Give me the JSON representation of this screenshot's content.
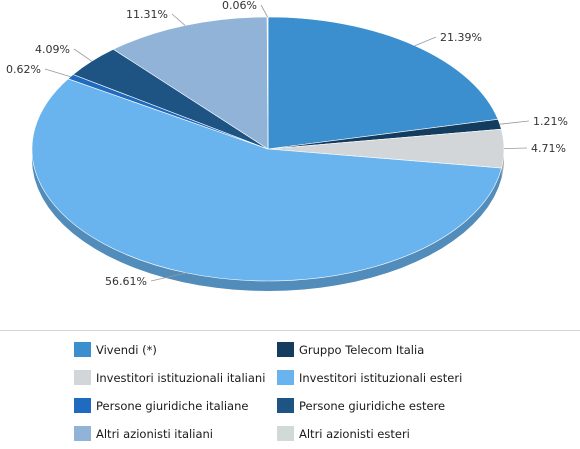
{
  "chart_data": {
    "type": "pie",
    "series": [
      {
        "name": "Vivendi (*)",
        "value": 21.39,
        "label": "21.39%",
        "color": "#3b8fce"
      },
      {
        "name": "Gruppo Telecom Italia",
        "value": 1.21,
        "label": "1.21%",
        "color": "#133c5f"
      },
      {
        "name": "Investitori istituzionali italiani",
        "value": 4.71,
        "label": "4.71%",
        "color": "#d3d6d8"
      },
      {
        "name": "Investitori istituzionali esteri",
        "value": 56.61,
        "label": "56.61%",
        "color": "#69b4ee"
      },
      {
        "name": "Persone giuridiche italiane",
        "value": 0.62,
        "label": "0.62%",
        "color": "#1f6bbf"
      },
      {
        "name": "Persone giuridiche estere",
        "value": 4.09,
        "label": "4.09%",
        "color": "#1e5484"
      },
      {
        "name": "Altri azionisti italiani",
        "value": 11.31,
        "label": "11.31%",
        "color": "#92b3d8"
      },
      {
        "name": "Altri azionisti esteri",
        "value": 0.06,
        "label": "0.06%",
        "color": "#d2d9d9"
      }
    ],
    "legend_position": "bottom",
    "style": "3d-pie"
  }
}
